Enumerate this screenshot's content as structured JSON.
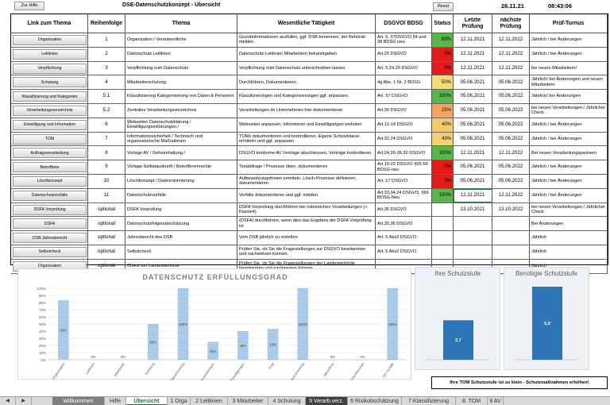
{
  "topbar": {
    "help_button": "Zur Hilfe",
    "title": "DSE-Datenschutzkonzept - Übersicht",
    "reset_button": "Reset",
    "date": "26.11.21",
    "time": "08:43:06"
  },
  "table": {
    "headers": [
      "Link zum Thema",
      "Reihenfolge",
      "Thema",
      "Wesentliche Tätigkeit",
      "DSGVO/ BDSG",
      "Status",
      "Letzte Prüfung",
      "nächste Prüfung",
      "Prüf-Turnus"
    ],
    "rows": [
      {
        "link": "Organisation",
        "order": "1",
        "topic": "Organization / Verantwortliche",
        "activity": "Grundinformationen ausfüllen, ggf. DSB benennen, der Behörde melden.",
        "law": "Art. 5, 37DSGVO,§4 und 38 BDSG neu",
        "status": "83%",
        "status_value": 0.83,
        "status_color": "#56b848",
        "last": "12.11.2021",
        "next": "12.11.2022",
        "turnus": "Jährlich / bei Änderungen"
      },
      {
        "link": "Leitlinien",
        "order": "2",
        "topic": "Datenschutz Leitlinien",
        "activity": "Datenschutz-Leitlinien Mitarbeitern bekanntgeben",
        "law": "Art.25 DSGVO",
        "status": "0%",
        "status_value": 0,
        "status_color": "#e31b1b",
        "last": "12.11.2021",
        "next": "12.11.2022",
        "turnus": "Jährlich / bei Änderungen"
      },
      {
        "link": "Verpflichtung",
        "order": "3",
        "topic": "Verpflichtung zum Datenschutz",
        "activity": "Verpflichtung zum Datenschutz unterschreiben lassen",
        "law": "Art. 5,24,29 DSGVO",
        "status": "0%",
        "status_value": 0,
        "status_color": "#e31b1b",
        "last": "12.11.2021",
        "next": "12.11.2022",
        "turnus": "bei neuen Mitarbeitern!"
      },
      {
        "link": "Schulung",
        "order": "4",
        "topic": "Mitarbeiterschulung",
        "activity": "Durchführen, Dokumentieren",
        "law": "4g Abs. 1 Nr. 2 BDSG",
        "status": "50%",
        "status_value": 0.5,
        "status_color": "#f2dd6e",
        "last": "05.06.2021",
        "next": "05.06.2022",
        "turnus": "Jährlich/ bei Änderungen und neuen Mitarbeitern"
      },
      {
        "link": "Klassifizierung und Kategorien",
        "order": "5.1",
        "topic": "Klassifizierung Kategorisierung von Daten & Personen",
        "activity": "Klassifizierungen und Kategorisierungen ggf. anpassen.",
        "law": "Art. 57 DSGVO",
        "status": "100%",
        "status_value": 1,
        "status_color": "#56b848",
        "last": "05.06.2021",
        "next": "05.06.2022",
        "turnus": "Jährlich/ bei Änderungen"
      },
      {
        "link": "Verarbeitungsverzeichnis",
        "order": "5.2",
        "topic": "Zentrales Verarbeitungsverzeichnis",
        "activity": "Verarbeitungen im Unternehmen hier dokumentieren",
        "law": "Art.30 DSGVO",
        "status": "25%",
        "status_value": 0.25,
        "status_color": "#f4a460",
        "last": "05.06.2021",
        "next": "05.06.2022",
        "turnus": "bei neuen Verarbeitungen / Jährlicher Check"
      },
      {
        "link": "Einwilligung und Information",
        "order": "6",
        "topic": "Webseiten Datenschutzklärung / Einwilligungserklärungen /",
        "activity": "Webseiten anpassen, Informieren und Einwilligungen einholen",
        "law": "Art.12-14 DSGVO",
        "status": "40%",
        "status_value": 0.4,
        "status_color": "#f7c96a",
        "last": "05.06.2021",
        "next": "05.06.2022",
        "turnus": "Jährlich / bei Änderungen"
      },
      {
        "link": "TOM",
        "order": "7",
        "topic": "Informationssicherheit / Technisch und organisatorische Maßnahmen",
        "activity": "TOMs dokumentieren und kontrollieren. Eigene Schutzklasse ermitteln und ggf. anpassen",
        "law": "Art.32,24 DSGVO",
        "status": "43%",
        "status_value": 0.43,
        "status_color": "#f4d070",
        "last": "05.06.2021",
        "next": "05.06.2022",
        "turnus": "Jährlich / bei Änderungen"
      },
      {
        "link": "Auftragsverarbeitung",
        "order": "8",
        "topic": "Vorlage AV / Geheimhaltung /",
        "activity": "DSGVO konforme AV Verträge abschliessen, Verträge kontrollieren.",
        "law": "Art.24,26-28,32 DSGVO",
        "status": "100%",
        "status_value": 1,
        "status_color": "#56b848",
        "last": "12.11.2021",
        "next": "12.11.2022",
        "turnus": "Bei neuen Verarbeitungspartnern"
      },
      {
        "link": "Betroffene",
        "order": "9",
        "topic": "Vorlage Selbstauskunft / Betroffenenrechte",
        "activity": "Testabfrage / Prozesse üben, dokumentieren",
        "law": "Art.15-22 DSGVO §55-59 BDSG-neu",
        "status": "0%",
        "status_value": 0,
        "status_color": "#e31b1b",
        "last": "05.06.2021",
        "next": "05.06.2022",
        "turnus": "Jährlich / bei Änderungen"
      },
      {
        "link": "Löschkonzept",
        "order": "10",
        "topic": "Löschkonzept / Datenminimierung",
        "activity": "Aufbewahrungsfristen ermitteln, Lösch-Prozesse definieren, dokumentieren",
        "law": "Art. 17 DSGVO",
        "status": "0%",
        "status_value": 0,
        "status_color": "#e31b1b",
        "last": "05.06.2021",
        "next": "05.06.2022",
        "turnus": "Jährlich / bei Änderungen"
      },
      {
        "link": "Datenschutzvorfälle",
        "order": "11",
        "topic": "Datenschutzvorfälle",
        "activity": "Vorfälle dokumentieren und ggf. melden.",
        "law": "Art.33,34,24 DSGVO, §66 BDSG-Neu",
        "status": "100%",
        "status_value": 1,
        "status_color": "#56b848",
        "last": "12.11.2021",
        "next": "12.11.2022",
        "turnus": "Jährlich / bei Änderungen"
      },
      {
        "link": "DSFA Vorprüfung",
        "order": "optional",
        "topic": "DSFA Vorprüfung",
        "activity": "DSFA Vorprüfung durchführen bei riskoreichen Verarbeitungen (> Klasse4)",
        "law": "Art.35 DSGVO",
        "status": "",
        "status_value": null,
        "status_color": "",
        "last": "13.10.2021",
        "next": "13.10.2022",
        "turnus": "bei neuen Verarbeitungen / Jährlicher Check"
      },
      {
        "link": "DSFA",
        "order": "optional",
        "topic": "Datenschutzfolgenabschätzung",
        "activity": "(DSFA) durchführen, wenn dies das Ergebnis der DSFA Vorprüfung ist",
        "law": "Art.35,36 DSGVO",
        "status": "",
        "status_value": null,
        "status_color": "",
        "last": "",
        "next": "",
        "turnus": "Bei Änderungen"
      },
      {
        "link": "DSB Jahresbericht",
        "order": "optional",
        "topic": "Jahresbericht des DSB",
        "activity": "Vom DSB jährlich zu erstellen",
        "law": "Art. 5 Abs2 DSGVO",
        "status": "",
        "status_value": null,
        "status_color": "",
        "last": "",
        "next": "",
        "turnus": "Jährlich"
      },
      {
        "link": "Selbstcheck",
        "order": "optional",
        "topic": "Selbstcheck",
        "activity": "Prüfen Sie, ob Sie die Fragestellungen zur DSGVO beantworten und nachweisen können.",
        "law": "Art. 5 Abs2 DSGVO",
        "status": "",
        "status_value": null,
        "status_color": "",
        "last": "",
        "next": "",
        "turnus": "Jährlich"
      },
      {
        "link": "Organisation",
        "order": "optional",
        "topic": "Check der Landesbehörde",
        "activity": "Prüfen Sie, ob Sie die Fragestellungen der Landesbehörde beantworten und nachweisen können.",
        "law": "",
        "status": "",
        "status_value": null,
        "status_color": "",
        "last": "",
        "next": "",
        "turnus": "Jährlich"
      }
    ]
  },
  "chart_data": [
    {
      "type": "bar",
      "title": "DATENSCHUTZ ERFÜLLUNGSGRAD",
      "categories": [
        "Organisation",
        "Leitlinien",
        "Mitarbeiter",
        "Schulung",
        "Klassifizierung",
        "Verarbeitungen",
        "Web Einwilligungen",
        "TOM",
        "Auftragsverarbeitung",
        "Betroffene",
        "Löschkonzept",
        "DS Vorfälle"
      ],
      "values": [
        83,
        0,
        0,
        50,
        100,
        25,
        40,
        43,
        100,
        0,
        0,
        100
      ],
      "value_labels": [
        "83%",
        "0%",
        "0%",
        "50%",
        "100%",
        "25%",
        "40%",
        "43%",
        "100%",
        "0%",
        "0%",
        "100%"
      ],
      "ylim": [
        0,
        100
      ],
      "yticks": [
        "0%",
        "10%",
        "20%",
        "30%",
        "40%",
        "50%",
        "60%",
        "70%",
        "80%",
        "90%",
        "100%"
      ],
      "bar_color": "#9dc3e6",
      "grid": true
    },
    {
      "type": "bar",
      "title": "Ihre Schutzstufe",
      "categories": [
        ""
      ],
      "values": [
        2.7
      ],
      "value_labels": [
        "2,7"
      ],
      "ylim": [
        0,
        5
      ],
      "bar_color": "#2e75b6"
    },
    {
      "type": "bar",
      "title": "Benötigte Schutzstufe",
      "categories": [
        ""
      ],
      "values": [
        5
      ],
      "value_labels": [
        "5,0"
      ],
      "ylim": [
        0,
        5
      ],
      "bar_color": "#2e75b6"
    }
  ],
  "warning": "Ihre TOM Schutzstufe ist zu klein - Schutzmaßnahmen erhöhen!",
  "sheet_tabs": [
    "Willkommen",
    "Hilfe",
    "Übersicht",
    "1 Orga",
    "2 Leitlinien",
    "3 Mitarbeiter",
    "4 Schulung",
    "5 Verarb.verz.",
    "6 Risikobschätzung",
    "7 Klassifizierung",
    "8. TOM",
    "9 AV"
  ],
  "active_tab": "Übersicht"
}
